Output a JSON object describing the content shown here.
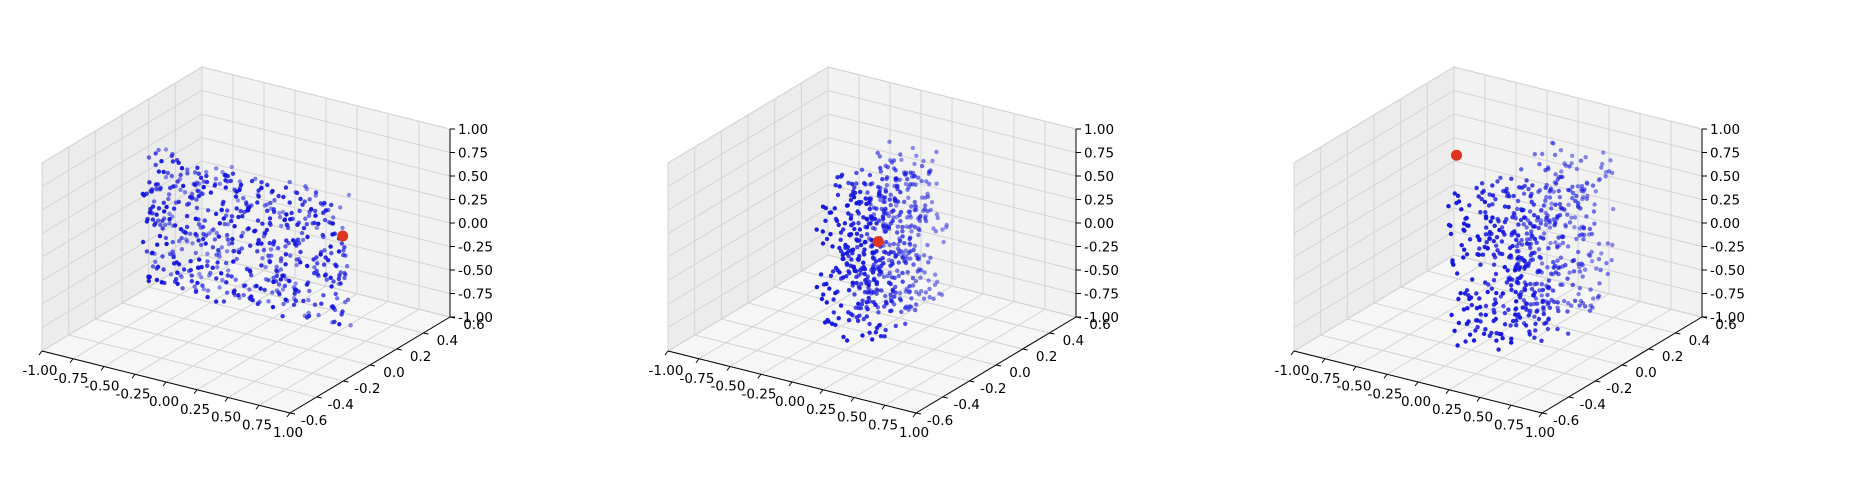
{
  "chart_data": [
    {
      "type": "scatter3d",
      "title": "",
      "xlabel": "",
      "ylabel": "",
      "zlabel": "",
      "xlim": [
        -1.0,
        1.0
      ],
      "ylim": [
        -0.6,
        0.6
      ],
      "zlim": [
        -1.0,
        1.0
      ],
      "x_ticks": [
        "-1.00",
        "-0.75",
        "-0.50",
        "-0.25",
        "0.00",
        "0.25",
        "0.50",
        "0.75",
        "1.00"
      ],
      "y_ticks": [
        "-0.6",
        "-0.4",
        "-0.2",
        "0.0",
        "0.2",
        "0.4",
        "0.6"
      ],
      "z_ticks": [
        "-1.00",
        "-0.75",
        "-0.50",
        "-0.25",
        "0.00",
        "0.25",
        "0.50",
        "0.75",
        "1.00"
      ],
      "grid": true,
      "point_cloud": {
        "x_range": [
          -0.8,
          0.8
        ],
        "y_range": [
          -0.05,
          0.05
        ],
        "z_range": [
          -0.7,
          0.7
        ],
        "count": 560,
        "color": "#1515e0"
      },
      "highlight_point": {
        "x": 0.78,
        "y": 0.0,
        "z": 0.3,
        "color": "#e03420"
      }
    },
    {
      "type": "scatter3d",
      "title": "",
      "xlabel": "",
      "ylabel": "",
      "zlabel": "",
      "xlim": [
        -1.0,
        1.0
      ],
      "ylim": [
        -0.6,
        0.6
      ],
      "zlim": [
        -1.0,
        1.0
      ],
      "x_ticks": [
        "-1.00",
        "-0.75",
        "-0.50",
        "-0.25",
        "0.00",
        "0.25",
        "0.50",
        "0.75",
        "1.00"
      ],
      "y_ticks": [
        "-0.6",
        "-0.4",
        "-0.2",
        "0.0",
        "0.2",
        "0.4",
        "0.6"
      ],
      "z_ticks": [
        "-1.00",
        "-0.75",
        "-0.50",
        "-0.25",
        "0.00",
        "0.25",
        "0.50",
        "0.75",
        "1.00"
      ],
      "grid": true,
      "point_cloud": {
        "x_range": [
          -0.15,
          0.3
        ],
        "y_range": [
          -0.3,
          0.3
        ],
        "z_range": [
          -0.8,
          0.8
        ],
        "count": 560,
        "color": "#1515e0"
      },
      "highlight_point": {
        "x": 0.05,
        "y": 0.0,
        "z": 0.0,
        "color": "#e03420"
      }
    },
    {
      "type": "scatter3d",
      "title": "",
      "xlabel": "",
      "ylabel": "",
      "zlabel": "",
      "xlim": [
        -1.0,
        1.0
      ],
      "ylim": [
        -0.6,
        0.6
      ],
      "zlim": [
        -1.0,
        1.0
      ],
      "x_ticks": [
        "-1.00",
        "-0.75",
        "-0.50",
        "-0.25",
        "0.00",
        "0.25",
        "0.50",
        "0.75",
        "1.00"
      ],
      "y_ticks": [
        "-0.6",
        "-0.4",
        "-0.2",
        "0.0",
        "0.2",
        "0.4",
        "0.6"
      ],
      "z_ticks": [
        "-1.00",
        "-0.75",
        "-0.50",
        "-0.25",
        "0.00",
        "0.25",
        "0.50",
        "0.75",
        "1.00"
      ],
      "grid": true,
      "point_cloud": {
        "x_range": [
          0.0,
          0.6
        ],
        "y_range": [
          -0.4,
          0.4
        ],
        "z_range": [
          -0.8,
          0.8
        ],
        "count": 560,
        "color": "#1515e0"
      },
      "highlight_point": {
        "x": -0.55,
        "y": 0.2,
        "z": 0.55,
        "color": "#e03420"
      }
    }
  ]
}
